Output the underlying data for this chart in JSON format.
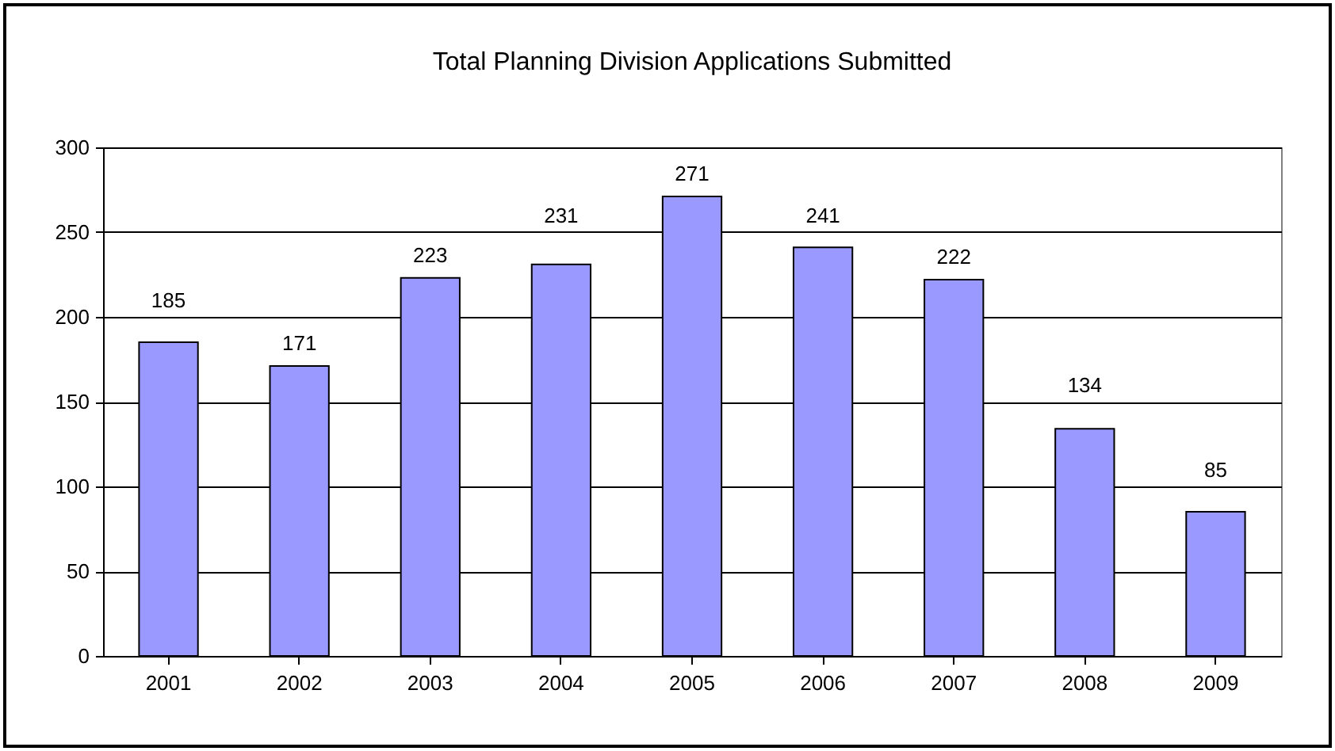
{
  "chart_data": {
    "type": "bar",
    "title": "Total Planning Division Applications Submitted",
    "categories": [
      "2001",
      "2002",
      "2003",
      "2004",
      "2005",
      "2006",
      "2007",
      "2008",
      "2009"
    ],
    "values": [
      185,
      171,
      223,
      231,
      271,
      241,
      222,
      134,
      85
    ],
    "color": "#9999ff",
    "ylim": [
      0,
      300
    ],
    "yticks": [
      0,
      50,
      100,
      150,
      200,
      250,
      300
    ],
    "grid": "y",
    "data_labels": true
  }
}
